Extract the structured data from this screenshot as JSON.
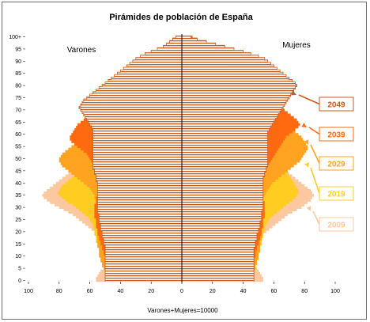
{
  "chart_data": {
    "type": "bar",
    "title": "Pirámides de población de España",
    "xlabel": "Varones+Mujeres=10000",
    "left_label": "Varones",
    "right_label": "Mujeres",
    "xlim": [
      -100,
      100
    ],
    "x_ticks": [
      100,
      80,
      60,
      40,
      20,
      0,
      20,
      40,
      60,
      80,
      100
    ],
    "y_ticks": [
      "0",
      "5",
      "10",
      "15",
      "20",
      "25",
      "30",
      "35",
      "40",
      "45",
      "50",
      "55",
      "60",
      "65",
      "70",
      "75",
      "80",
      "85",
      "90",
      "95",
      "100+"
    ],
    "ages": [
      0,
      1,
      2,
      3,
      4,
      5,
      6,
      7,
      8,
      9,
      10,
      11,
      12,
      13,
      14,
      15,
      16,
      17,
      18,
      19,
      20,
      21,
      22,
      23,
      24,
      25,
      26,
      27,
      28,
      29,
      30,
      31,
      32,
      33,
      34,
      35,
      36,
      37,
      38,
      39,
      40,
      41,
      42,
      43,
      44,
      45,
      46,
      47,
      48,
      49,
      50,
      51,
      52,
      53,
      54,
      55,
      56,
      57,
      58,
      59,
      60,
      61,
      62,
      63,
      64,
      65,
      66,
      67,
      68,
      69,
      70,
      71,
      72,
      73,
      74,
      75,
      76,
      77,
      78,
      79,
      80,
      81,
      82,
      83,
      84,
      85,
      86,
      87,
      88,
      89,
      90,
      91,
      92,
      93,
      94,
      95,
      96,
      97,
      98,
      99,
      100
    ],
    "series": [
      {
        "name": "2009",
        "color": "#fbc8a0",
        "male": [
          56,
          56,
          55,
          54,
          53,
          51,
          50,
          49,
          49,
          48,
          48,
          48,
          49,
          49,
          50,
          51,
          52,
          53,
          54,
          55,
          57,
          59,
          61,
          63,
          65,
          67,
          69,
          71,
          74,
          77,
          80,
          83,
          86,
          88,
          90,
          91,
          90,
          88,
          86,
          84,
          82,
          80,
          78,
          76,
          74,
          72,
          70,
          68,
          66,
          64,
          62,
          60,
          58,
          56,
          54,
          52,
          50,
          48,
          46,
          44,
          42,
          40,
          38,
          36,
          34,
          32,
          30,
          28,
          26,
          24,
          22,
          20,
          18,
          16,
          14,
          12,
          10,
          8,
          6,
          5,
          4,
          3,
          3,
          2,
          2,
          1,
          1,
          1,
          1,
          1,
          0,
          0,
          0,
          0,
          0,
          0,
          0,
          0,
          0,
          0,
          0
        ],
        "female": [
          53,
          53,
          52,
          51,
          50,
          49,
          48,
          47,
          47,
          46,
          46,
          46,
          46,
          47,
          48,
          49,
          50,
          51,
          52,
          53,
          55,
          57,
          59,
          61,
          63,
          65,
          67,
          69,
          72,
          75,
          78,
          80,
          82,
          84,
          85,
          86,
          85,
          84,
          82,
          80,
          78,
          76,
          74,
          72,
          70,
          69,
          68,
          66,
          64,
          62,
          61,
          60,
          58,
          56,
          54,
          53,
          52,
          50,
          48,
          46,
          45,
          44,
          42,
          40,
          38,
          37,
          36,
          34,
          32,
          30,
          28,
          26,
          24,
          22,
          20,
          18,
          16,
          14,
          12,
          10,
          8,
          7,
          6,
          5,
          4,
          3,
          2,
          2,
          1,
          1,
          1,
          0,
          0,
          0,
          0,
          0,
          0,
          0,
          0,
          0,
          0
        ]
      },
      {
        "name": "2019",
        "color": "#ffcc22",
        "male": [
          48,
          48,
          49,
          50,
          50,
          50,
          50,
          51,
          51,
          52,
          52,
          53,
          54,
          54,
          55,
          55,
          56,
          56,
          56,
          57,
          57,
          57,
          58,
          58,
          59,
          60,
          61,
          63,
          65,
          67,
          69,
          71,
          74,
          76,
          78,
          80,
          81,
          80,
          79,
          78,
          76,
          74,
          72,
          70,
          68,
          66,
          64,
          62,
          60,
          58,
          56,
          54,
          52,
          50,
          48,
          46,
          44,
          42,
          40,
          38,
          36,
          34,
          32,
          30,
          28,
          26,
          24,
          22,
          20,
          18,
          16,
          14,
          12,
          10,
          8,
          7,
          6,
          5,
          4,
          3,
          3,
          2,
          2,
          1,
          1,
          1,
          0,
          0,
          0,
          0,
          0,
          0,
          0,
          0,
          0,
          0,
          0,
          0,
          0,
          0,
          0
        ],
        "female": [
          46,
          46,
          46,
          47,
          47,
          47,
          48,
          48,
          48,
          49,
          49,
          50,
          50,
          51,
          51,
          52,
          52,
          52,
          53,
          53,
          53,
          54,
          54,
          55,
          56,
          57,
          58,
          60,
          62,
          64,
          66,
          68,
          70,
          72,
          74,
          75,
          76,
          76,
          75,
          74,
          73,
          72,
          71,
          70,
          69,
          67,
          66,
          64,
          62,
          60,
          58,
          56,
          54,
          52,
          50,
          48,
          46,
          44,
          42,
          40,
          38,
          36,
          34,
          32,
          30,
          28,
          26,
          24,
          22,
          20,
          18,
          16,
          14,
          12,
          10,
          9,
          8,
          7,
          6,
          5,
          4,
          3,
          3,
          2,
          2,
          1,
          1,
          1,
          0,
          0,
          0,
          0,
          0,
          0,
          0,
          0,
          0,
          0,
          0,
          0,
          0
        ]
      },
      {
        "name": "2029",
        "color": "#ffa320",
        "male": [
          49,
          49,
          49,
          50,
          50,
          51,
          52,
          52,
          53,
          53,
          54,
          54,
          54,
          54,
          55,
          55,
          55,
          55,
          55,
          55,
          55,
          55,
          55,
          55,
          55,
          55,
          55,
          55,
          55,
          55,
          56,
          56,
          56,
          56,
          57,
          57,
          58,
          59,
          60,
          62,
          64,
          66,
          68,
          70,
          72,
          74,
          76,
          78,
          79,
          80,
          80,
          79,
          78,
          76,
          74,
          72,
          70,
          68,
          66,
          64,
          62,
          60,
          58,
          56,
          54,
          52,
          50,
          48,
          46,
          44,
          42,
          40,
          38,
          36,
          34,
          32,
          30,
          28,
          26,
          24,
          22,
          20,
          18,
          16,
          14,
          12,
          10,
          8,
          6,
          5,
          4,
          3,
          2,
          2,
          1,
          1,
          0,
          0,
          0,
          0,
          0
        ],
        "female": [
          46,
          46,
          47,
          47,
          47,
          48,
          48,
          49,
          49,
          50,
          50,
          50,
          51,
          51,
          51,
          51,
          51,
          52,
          52,
          52,
          52,
          52,
          52,
          52,
          52,
          52,
          52,
          52,
          52,
          52,
          52,
          52,
          53,
          53,
          53,
          54,
          55,
          56,
          57,
          58,
          59,
          61,
          63,
          65,
          67,
          69,
          71,
          73,
          75,
          77,
          78,
          79,
          80,
          81,
          82,
          82,
          81,
          80,
          79,
          78,
          76,
          74,
          72,
          70,
          68,
          66,
          64,
          62,
          60,
          58,
          56,
          54,
          52,
          50,
          48,
          46,
          44,
          42,
          40,
          38,
          36,
          34,
          32,
          30,
          28,
          26,
          24,
          22,
          20,
          18,
          16,
          14,
          12,
          10,
          8,
          6,
          4,
          3,
          2,
          1,
          1
        ]
      },
      {
        "name": "2039",
        "color": "#ff6a10",
        "male": [
          50,
          50,
          50,
          50,
          50,
          50,
          50,
          50,
          50,
          50,
          50,
          51,
          51,
          52,
          52,
          53,
          53,
          54,
          54,
          55,
          55,
          55,
          56,
          56,
          56,
          56,
          57,
          57,
          57,
          57,
          57,
          57,
          56,
          56,
          56,
          55,
          55,
          55,
          55,
          55,
          55,
          55,
          55,
          55,
          55,
          56,
          56,
          57,
          58,
          59,
          60,
          61,
          62,
          64,
          66,
          68,
          70,
          72,
          73,
          73,
          72,
          71,
          70,
          69,
          68,
          66,
          64,
          62,
          60,
          58,
          56,
          54,
          52,
          50,
          48,
          46,
          44,
          42,
          40,
          38,
          36,
          34,
          32,
          30,
          28,
          26,
          24,
          22,
          20,
          18,
          16,
          14,
          12,
          10,
          8,
          6,
          5,
          4,
          3,
          2,
          1
        ],
        "female": [
          47,
          47,
          47,
          47,
          47,
          47,
          47,
          47,
          47,
          47,
          48,
          48,
          48,
          49,
          49,
          50,
          50,
          51,
          51,
          52,
          52,
          52,
          53,
          53,
          53,
          53,
          54,
          54,
          54,
          54,
          54,
          54,
          54,
          53,
          53,
          53,
          53,
          53,
          53,
          53,
          53,
          53,
          53,
          53,
          54,
          54,
          55,
          56,
          57,
          58,
          59,
          60,
          61,
          62,
          63,
          64,
          65,
          66,
          67,
          68,
          70,
          72,
          74,
          76,
          77,
          76,
          75,
          73,
          71,
          69,
          67,
          65,
          63,
          61,
          59,
          57,
          55,
          53,
          51,
          49,
          47,
          45,
          43,
          41,
          39,
          37,
          35,
          33,
          31,
          29,
          27,
          25,
          23,
          21,
          19,
          17,
          15,
          13,
          11,
          9,
          7
        ]
      },
      {
        "name": "2049",
        "color": "#c85a1a",
        "hatched": true,
        "male": [
          50,
          50,
          50,
          50,
          50,
          50,
          50,
          50,
          50,
          50,
          50,
          50,
          50,
          50,
          50,
          51,
          51,
          51,
          52,
          52,
          52,
          53,
          53,
          53,
          54,
          54,
          54,
          54,
          55,
          55,
          55,
          55,
          55,
          55,
          55,
          55,
          55,
          55,
          55,
          55,
          55,
          56,
          56,
          56,
          57,
          57,
          58,
          58,
          58,
          58,
          58,
          58,
          58,
          58,
          58,
          58,
          58,
          58,
          58,
          58,
          58,
          58,
          58,
          59,
          60,
          61,
          62,
          63,
          64,
          65,
          66,
          67,
          66,
          65,
          64,
          62,
          60,
          58,
          56,
          54,
          52,
          50,
          48,
          46,
          44,
          42,
          40,
          38,
          36,
          34,
          32,
          30,
          27,
          24,
          20,
          16,
          12,
          10,
          8,
          6,
          4
        ],
        "female": [
          47,
          47,
          47,
          47,
          47,
          47,
          47,
          47,
          47,
          47,
          47,
          47,
          47,
          47,
          48,
          48,
          48,
          49,
          49,
          49,
          50,
          50,
          51,
          51,
          51,
          52,
          52,
          52,
          52,
          53,
          53,
          53,
          53,
          53,
          53,
          53,
          53,
          53,
          53,
          53,
          53,
          53,
          53,
          54,
          54,
          55,
          55,
          56,
          56,
          56,
          56,
          56,
          56,
          56,
          56,
          56,
          56,
          56,
          56,
          56,
          56,
          56,
          57,
          58,
          59,
          60,
          61,
          62,
          63,
          64,
          65,
          66,
          67,
          68,
          69,
          70,
          71,
          72,
          73,
          74,
          75,
          74,
          72,
          70,
          68,
          66,
          64,
          62,
          60,
          58,
          56,
          54,
          50,
          45,
          40,
          34,
          28,
          22,
          16,
          10,
          6
        ]
      }
    ]
  },
  "legend": [
    {
      "label": "2049",
      "color": "#c85a1a"
    },
    {
      "label": "2039",
      "color": "#ff6a10"
    },
    {
      "label": "2029",
      "color": "#ffa320"
    },
    {
      "label": "2019",
      "color": "#ffcc22"
    },
    {
      "label": "2009",
      "color": "#fbc8a0"
    }
  ]
}
